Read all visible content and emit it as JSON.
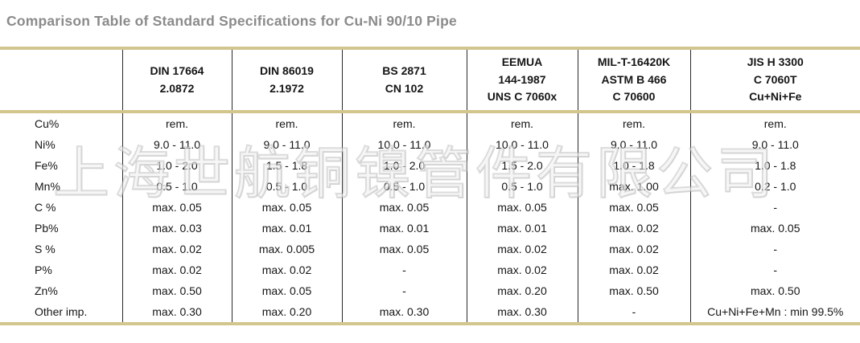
{
  "title": "Comparison Table of Standard Specifications for Cu-Ni 90/10 Pipe",
  "watermark": "上海世航铜镍管件有限公司",
  "colors": {
    "accent_tan_border": "#d2c68e",
    "title_gray": "#8b8b8b",
    "column_divider": "#2a2a2a",
    "text": "#151515",
    "background": "#ffffff"
  },
  "table": {
    "row_header_label": "",
    "columns": [
      {
        "lines": [
          "DIN 17664",
          "2.0872"
        ]
      },
      {
        "lines": [
          "DIN 86019",
          "2.1972"
        ]
      },
      {
        "lines": [
          "BS 2871",
          "CN 102"
        ]
      },
      {
        "lines": [
          "EEMUA",
          "144-1987",
          "UNS C 7060x"
        ]
      },
      {
        "lines": [
          "MIL-T-16420K",
          "ASTM B 466",
          "C 70600"
        ]
      },
      {
        "lines": [
          "JIS H 3300",
          "C 7060T",
          "Cu+Ni+Fe"
        ]
      }
    ],
    "rows": [
      {
        "label": "Cu%",
        "values": [
          "rem.",
          "rem.",
          "rem.",
          "rem.",
          "rem.",
          "rem."
        ]
      },
      {
        "label": "Ni%",
        "values": [
          "9.0 - 11.0",
          "9.0 - 11.0",
          "10.0 - 11.0",
          "10.0 - 11.0",
          "9.0 - 11.0",
          "9.0 - 11.0"
        ]
      },
      {
        "label": "Fe%",
        "values": [
          "1.0 - 2.0",
          "1.5 - 1.8",
          "1.0 - 2.0",
          "1.5 - 2.0",
          "1.0 - 1.8",
          "1.0 - 1.8"
        ]
      },
      {
        "label": "Mn%",
        "values": [
          "0.5 - 1.0",
          "0.5 - 1.0",
          "0.5 - 1.0",
          "0.5 - 1.0",
          "max. 1.00",
          "0.2 - 1.0"
        ]
      },
      {
        "label": "C %",
        "values": [
          "max. 0.05",
          "max. 0.05",
          "max. 0.05",
          "max. 0.05",
          "max. 0.05",
          "-"
        ]
      },
      {
        "label": "Pb%",
        "values": [
          "max. 0.03",
          "max. 0.01",
          "max. 0.01",
          "max. 0.01",
          "max. 0.02",
          "max. 0.05"
        ]
      },
      {
        "label": "S %",
        "values": [
          "max. 0.02",
          "max. 0.005",
          "max. 0.05",
          "max. 0.02",
          "max. 0.02",
          "-"
        ]
      },
      {
        "label": "P%",
        "values": [
          "max. 0.02",
          "max. 0.02",
          "-",
          "max. 0.02",
          "max. 0.02",
          "-"
        ]
      },
      {
        "label": "Zn%",
        "values": [
          "max. 0.50",
          "max. 0.05",
          "-",
          "max. 0.20",
          "max. 0.50",
          "max. 0.50"
        ]
      },
      {
        "label": "Other imp.",
        "values": [
          "max. 0.30",
          "max. 0.20",
          "max. 0.30",
          "max. 0.30",
          "-",
          "Cu+Ni+Fe+Mn : min 99.5%"
        ]
      }
    ]
  }
}
